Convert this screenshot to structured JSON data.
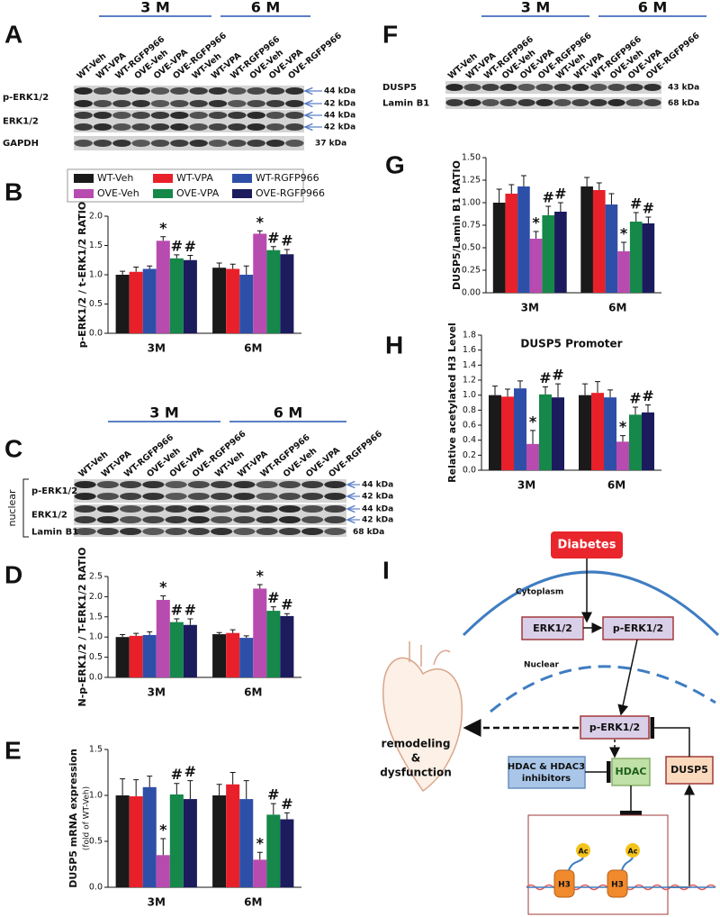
{
  "blots": [
    {
      "letter": "A",
      "groups": [
        "3 M",
        "6 M"
      ],
      "lanes": [
        "WT-Veh",
        "WT-VPA",
        "WT-RGFP966",
        "OVE-Veh",
        "OVE-VPA",
        "OVE-RGFP966",
        "WT-Veh",
        "WT-VPA",
        "WT-RGFP966",
        "OVE-Veh",
        "OVE-VPA",
        "OVE-RGFP966"
      ],
      "rows": [
        {
          "label": "p-ERK1/2",
          "kda": [
            "44 kDa",
            "42 kDa"
          ]
        },
        {
          "label": "ERK1/2",
          "kda": [
            "44 kDa",
            "42 kDa"
          ]
        },
        {
          "label": "GAPDH",
          "kda": [
            "37 kDa"
          ]
        }
      ]
    },
    {
      "letter": "C",
      "groups": [
        "3 M",
        "6 M"
      ],
      "fraction": "nuclear",
      "lanes": [
        "WT-Veh",
        "WT-VPA",
        "WT-RGFP966",
        "OVE-Veh",
        "OVE-VPA",
        "OVE-RGFP966",
        "WT-Veh",
        "WT-VPA",
        "WT-RGFP966",
        "OVE-Veh",
        "OVE-VPA",
        "OVE-RGFP966"
      ],
      "rows": [
        {
          "label": "p-ERK1/2",
          "kda": [
            "44 kDa",
            "42 kDa"
          ]
        },
        {
          "label": "ERK1/2",
          "kda": [
            "44 kDa",
            "42 kDa"
          ]
        },
        {
          "label": "Lamin B1",
          "kda": [
            "68 kDa"
          ]
        }
      ]
    },
    {
      "letter": "F",
      "groups": [
        "3 M",
        "6 M"
      ],
      "lanes": [
        "WT-Veh",
        "WT-VPA",
        "WT-RGFP966",
        "OVE-Veh",
        "OVE-VPA",
        "OVE-RGFP966",
        "WT-Veh",
        "WT-VPA",
        "WT-RGFP966",
        "OVE-Veh",
        "OVE-VPA",
        "OVE-RGFP966"
      ],
      "rows": [
        {
          "label": "DUSP5",
          "kda": [
            "43 kDa"
          ]
        },
        {
          "label": "Lamin B1",
          "kda": [
            "68 kDa"
          ]
        }
      ]
    }
  ],
  "chart_data": [
    {
      "type": "bar",
      "letter": "B",
      "y_label": "p-ERK1/2 / t-ERK1/2 RATIO",
      "legend": true,
      "categories": [
        "3M",
        "6M"
      ],
      "ylim": [
        0,
        2
      ],
      "yticks": [
        {
          "value": 0,
          "label": "0.0"
        },
        {
          "value": 0.5,
          "label": "0.5"
        },
        {
          "value": 1,
          "label": "1.0"
        },
        {
          "value": 1.5,
          "label": "1.5"
        },
        {
          "value": 2,
          "label": "2.0"
        }
      ],
      "series": [
        {
          "name": "WT-Veh",
          "color": "#1a1a1a",
          "values": [
            1.0,
            1.12
          ],
          "errors": [
            0.06,
            0.08
          ]
        },
        {
          "name": "WT-VPA",
          "color": "#e8202a",
          "values": [
            1.05,
            1.1
          ],
          "errors": [
            0.08,
            0.08
          ]
        },
        {
          "name": "WT-RGFP966",
          "color": "#2e4fa8",
          "values": [
            1.1,
            1.0
          ],
          "errors": [
            0.05,
            0.15
          ]
        },
        {
          "name": "OVE-Veh",
          "color": "#b84bb0",
          "values": [
            1.58,
            1.7
          ],
          "errors": [
            0.07,
            0.05
          ],
          "significance": [
            "*",
            "*"
          ]
        },
        {
          "name": "OVE-VPA",
          "color": "#15884a",
          "values": [
            1.28,
            1.42
          ],
          "errors": [
            0.06,
            0.06
          ],
          "significance": [
            "#",
            "#"
          ]
        },
        {
          "name": "OVE-RGFP966",
          "color": "#1b1b5e",
          "values": [
            1.25,
            1.35
          ],
          "errors": [
            0.08,
            0.08
          ],
          "significance": [
            "#",
            "#"
          ]
        }
      ]
    },
    {
      "type": "bar",
      "letter": "D",
      "y_label": "N-p-ERK1/2 / T-ERK1/2 RATIO",
      "categories": [
        "3M",
        "6M"
      ],
      "ylim": [
        0,
        2.5
      ],
      "yticks": [
        {
          "value": 0,
          "label": "0.0"
        },
        {
          "value": 0.5,
          "label": "0.5"
        },
        {
          "value": 1,
          "label": "1.0"
        },
        {
          "value": 1.5,
          "label": "1.5"
        },
        {
          "value": 2,
          "label": "2.0"
        },
        {
          "value": 2.5,
          "label": "2.5"
        }
      ],
      "series": [
        {
          "color": "#1a1a1a",
          "values": [
            1.0,
            1.07
          ],
          "errors": [
            0.06,
            0.04
          ]
        },
        {
          "color": "#e8202a",
          "values": [
            1.03,
            1.1
          ],
          "errors": [
            0.06,
            0.08
          ]
        },
        {
          "color": "#2e4fa8",
          "values": [
            1.05,
            0.98
          ],
          "errors": [
            0.08,
            0.05
          ]
        },
        {
          "color": "#b84bb0",
          "values": [
            1.92,
            2.2
          ],
          "errors": [
            0.1,
            0.1
          ],
          "significance": [
            "*",
            "*"
          ]
        },
        {
          "color": "#15884a",
          "values": [
            1.37,
            1.65
          ],
          "errors": [
            0.08,
            0.1
          ],
          "significance": [
            "#",
            "#"
          ]
        },
        {
          "color": "#1b1b5e",
          "values": [
            1.3,
            1.52
          ],
          "errors": [
            0.15,
            0.06
          ],
          "significance": [
            "#",
            "#"
          ]
        }
      ]
    },
    {
      "type": "bar",
      "letter": "E",
      "y_label": "DUSP5 mRNA expression",
      "y_sublabel": "(fold of WT-Veh)",
      "categories": [
        "3M",
        "6M"
      ],
      "ylim": [
        0,
        1.5
      ],
      "yticks": [
        {
          "value": 0,
          "label": "0.0"
        },
        {
          "value": 0.5,
          "label": "0.5"
        },
        {
          "value": 1,
          "label": "1.0"
        },
        {
          "value": 1.5,
          "label": "1.5"
        }
      ],
      "series": [
        {
          "color": "#1a1a1a",
          "values": [
            1.0,
            1.0
          ],
          "errors": [
            0.18,
            0.12
          ]
        },
        {
          "color": "#e8202a",
          "values": [
            0.99,
            1.12
          ],
          "errors": [
            0.18,
            0.13
          ]
        },
        {
          "color": "#2e4fa8",
          "values": [
            1.09,
            0.96
          ],
          "errors": [
            0.12,
            0.2
          ]
        },
        {
          "color": "#b84bb0",
          "values": [
            0.35,
            0.3
          ],
          "errors": [
            0.18,
            0.08
          ],
          "significance": [
            "*",
            "*"
          ]
        },
        {
          "color": "#15884a",
          "values": [
            1.01,
            0.79
          ],
          "errors": [
            0.12,
            0.12
          ],
          "significance": [
            "#",
            "#"
          ]
        },
        {
          "color": "#1b1b5e",
          "values": [
            0.96,
            0.74
          ],
          "errors": [
            0.2,
            0.07
          ],
          "significance": [
            "#",
            "#"
          ]
        }
      ]
    },
    {
      "type": "bar",
      "letter": "G",
      "y_label": "DUSP5/Lamin B1 RATIO",
      "categories": [
        "3M",
        "6M"
      ],
      "ylim": [
        0,
        1.5
      ],
      "yticks": [
        {
          "value": 0,
          "label": "0.00"
        },
        {
          "value": 0.25,
          "label": "0.25"
        },
        {
          "value": 0.5,
          "label": "0.50"
        },
        {
          "value": 0.75,
          "label": "0.75"
        },
        {
          "value": 1,
          "label": "1.00"
        },
        {
          "value": 1.25,
          "label": "1.25"
        },
        {
          "value": 1.5,
          "label": "1.50"
        }
      ],
      "series": [
        {
          "color": "#1a1a1a",
          "values": [
            1.0,
            1.18
          ],
          "errors": [
            0.15,
            0.1
          ]
        },
        {
          "color": "#e8202a",
          "values": [
            1.1,
            1.14
          ],
          "errors": [
            0.1,
            0.08
          ]
        },
        {
          "color": "#2e4fa8",
          "values": [
            1.18,
            0.98
          ],
          "errors": [
            0.12,
            0.12
          ]
        },
        {
          "color": "#b84bb0",
          "values": [
            0.6,
            0.46
          ],
          "errors": [
            0.08,
            0.1
          ],
          "significance": [
            "*",
            "*"
          ]
        },
        {
          "color": "#15884a",
          "values": [
            0.86,
            0.79
          ],
          "errors": [
            0.1,
            0.1
          ],
          "significance": [
            "#",
            "#"
          ]
        },
        {
          "color": "#1b1b5e",
          "values": [
            0.9,
            0.77
          ],
          "errors": [
            0.1,
            0.07
          ],
          "significance": [
            "#",
            "#"
          ]
        }
      ]
    },
    {
      "type": "bar",
      "letter": "H",
      "title": "DUSP5 Promoter",
      "y_label": "Relative acetylated H3 Level",
      "categories": [
        "3M",
        "6M"
      ],
      "ylim": [
        0,
        1.8
      ],
      "yticks": [
        {
          "value": 0,
          "label": "0.0"
        },
        {
          "value": 0.2,
          "label": "0.2"
        },
        {
          "value": 0.4,
          "label": "0.4"
        },
        {
          "value": 0.6,
          "label": "0.6"
        },
        {
          "value": 0.8,
          "label": "0.8"
        },
        {
          "value": 1,
          "label": "1.0"
        },
        {
          "value": 1.2,
          "label": "1.2"
        },
        {
          "value": 1.4,
          "label": "1.4"
        },
        {
          "value": 1.6,
          "label": "1.6"
        },
        {
          "value": 1.8,
          "label": "1.8"
        }
      ],
      "series": [
        {
          "color": "#1a1a1a",
          "values": [
            1.0,
            1.0
          ],
          "errors": [
            0.12,
            0.15
          ]
        },
        {
          "color": "#e8202a",
          "values": [
            0.98,
            1.03
          ],
          "errors": [
            0.1,
            0.15
          ]
        },
        {
          "color": "#2e4fa8",
          "values": [
            1.09,
            0.97
          ],
          "errors": [
            0.1,
            0.1
          ]
        },
        {
          "color": "#b84bb0",
          "values": [
            0.35,
            0.38
          ],
          "errors": [
            0.18,
            0.08
          ],
          "significance": [
            "*",
            "*"
          ]
        },
        {
          "color": "#15884a",
          "values": [
            1.01,
            0.74
          ],
          "errors": [
            0.1,
            0.1
          ],
          "significance": [
            "#",
            "#"
          ]
        },
        {
          "color": "#1b1b5e",
          "values": [
            0.97,
            0.77
          ],
          "errors": [
            0.18,
            0.1
          ],
          "significance": [
            "#",
            "#"
          ]
        }
      ]
    }
  ],
  "diagram": {
    "letter": "I",
    "diabetes": "Diabetes",
    "cytoplasm": "Cytoplasm",
    "nuclear": "Nuclear",
    "erk": "ERK1/2",
    "perk": "p-ERK1/2",
    "perk_nuclear": "p-ERK1/2",
    "outcome": [
      "remodeling",
      "&",
      "dysfunction"
    ],
    "inhibitors": [
      "HDAC & HDAC3",
      "inhibitors"
    ],
    "hdac": "HDAC",
    "dusp5": "DUSP5",
    "ac": [
      "Ac",
      "Ac"
    ],
    "h3": [
      "H3",
      "H3"
    ]
  }
}
